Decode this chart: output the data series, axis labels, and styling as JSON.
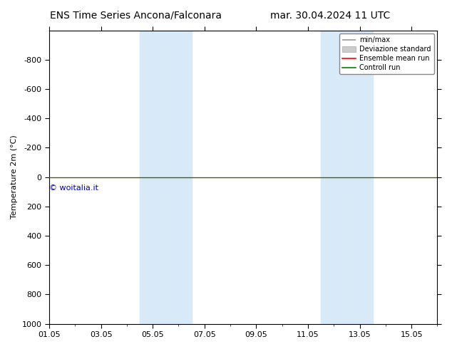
{
  "title_left": "ENS Time Series Ancona/Falconara",
  "title_right": "mar. 30.04.2024 11 UTC",
  "ylabel": "Temperature 2m (°C)",
  "ylim_bottom": -1000,
  "ylim_top": 1000,
  "yticks": [
    -800,
    -600,
    -400,
    -200,
    0,
    200,
    400,
    600,
    800,
    1000
  ],
  "xtick_labels": [
    "01.05",
    "03.05",
    "05.05",
    "07.05",
    "09.05",
    "11.05",
    "13.05",
    "15.05"
  ],
  "xtick_positions": [
    0,
    2,
    4,
    6,
    8,
    10,
    12,
    14
  ],
  "xlim": [
    0,
    15
  ],
  "shade_regions": [
    {
      "x_start": 3.5,
      "x_end": 5.5,
      "color": "#d8eaf8"
    },
    {
      "x_start": 10.5,
      "x_end": 12.5,
      "color": "#d8eaf8"
    }
  ],
  "flat_line_y": 0.0,
  "ensemble_mean_color": "#ff0000",
  "control_run_color": "#008000",
  "minmax_color": "#999999",
  "std_dev_color": "#cccccc",
  "watermark_text": "© woitalia.it",
  "watermark_color": "#0000cc",
  "legend_entries": [
    "min/max",
    "Deviazione standard",
    "Ensemble mean run",
    "Controll run"
  ],
  "background_color": "#ffffff",
  "plot_bg_color": "#ffffff",
  "title_fontsize": 10,
  "label_fontsize": 8,
  "tick_fontsize": 8,
  "legend_fontsize": 7
}
